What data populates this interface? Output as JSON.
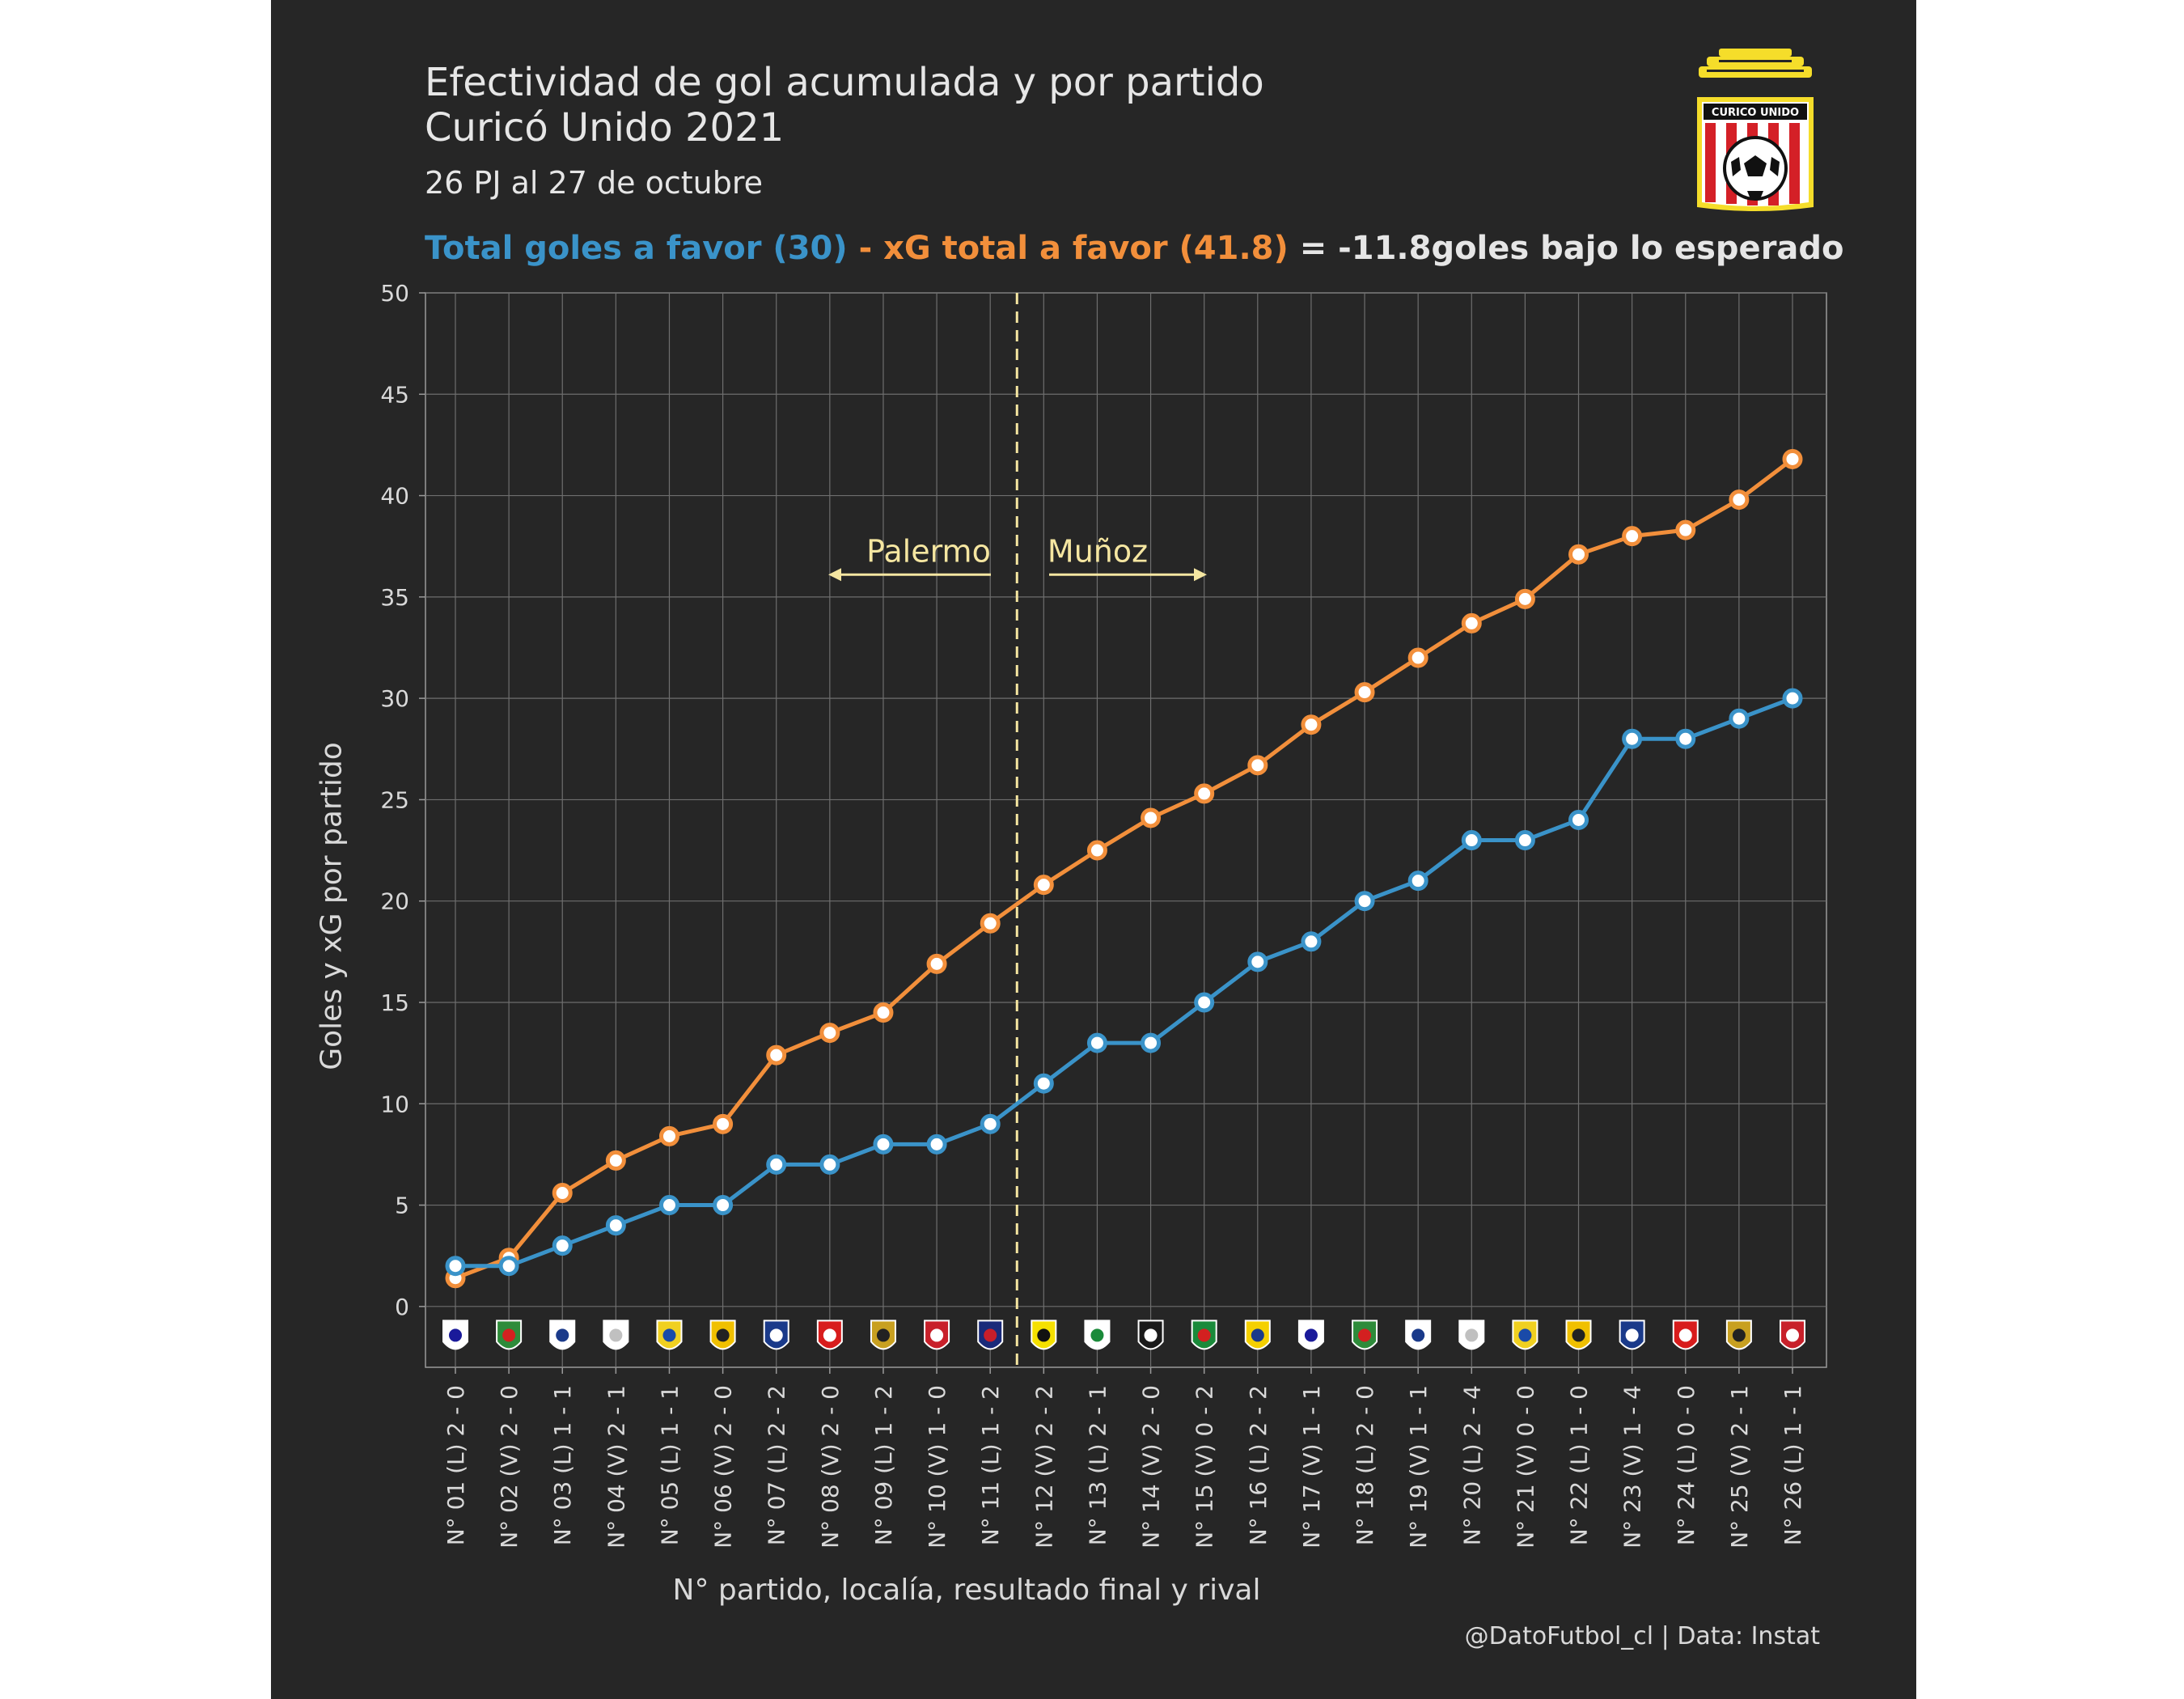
{
  "header": {
    "title_line1": "Efectividad de gol acumulada y por partido",
    "title_line2": "Curicó Unido 2021",
    "subtitle": "26 PJ al 27 de octubre",
    "summary_goals": "Total goles a favor (30)",
    "summary_xg": " - xG total a favor (41.8)",
    "summary_result": " = -11.8goles bajo lo esperado"
  },
  "logo": {
    "text": "CURICO UNIDO"
  },
  "caption": "@DatoFutbol_cl  |  Data: Instat",
  "colors": {
    "goals": "#3a93c9",
    "xg": "#f28f3b",
    "annotation": "#f5e6a1",
    "background": "#262626",
    "grid": "#6e6e6e"
  },
  "chart_data": {
    "type": "line",
    "xlabel": "N° partido, localía, resultado final y rival",
    "ylabel": "Goles y xG por partido",
    "ylim": [
      -3,
      50
    ],
    "yticks": [
      0,
      5,
      10,
      15,
      20,
      25,
      30,
      35,
      40,
      45,
      50
    ],
    "grid": true,
    "categories": [
      "N° 01 (L) 2 - 0",
      "N° 02 (V) 2 - 0",
      "N° 03 (L) 1 - 1",
      "N° 04 (V) 2 - 1",
      "N° 05 (L) 1 - 1",
      "N° 06 (V) 2 - 0",
      "N° 07 (L) 2 - 2",
      "N° 08 (V) 2 - 0",
      "N° 09 (L) 1 - 2",
      "N° 10 (V) 1 - 0",
      "N° 11 (L) 1 - 2",
      "N° 12 (V) 2 - 2",
      "N° 13 (L) 2 - 1",
      "N° 14 (V) 2 - 0",
      "N° 15 (V) 0 - 2",
      "N° 16 (L) 2 - 2",
      "N° 17 (V) 1 - 1",
      "N° 18 (L) 2 - 0",
      "N° 19 (V) 1 - 1",
      "N° 20 (L) 2 - 4",
      "N° 21 (V) 0 - 0",
      "N° 22 (L) 1 - 0",
      "N° 23 (V) 1 - 4",
      "N° 24 (L) 0 - 0",
      "N° 25 (V) 2 - 1",
      "N° 26 (L) 1 - 1"
    ],
    "series": [
      {
        "key": "xg",
        "values": [
          1.4,
          2.4,
          5.6,
          7.2,
          8.4,
          9.0,
          12.4,
          13.5,
          14.5,
          16.9,
          18.9,
          20.8,
          22.5,
          24.1,
          25.3,
          26.7,
          28.7,
          30.3,
          32.0,
          33.7,
          34.9,
          37.1,
          38.0,
          38.3,
          39.8,
          41.8
        ]
      },
      {
        "key": "goals",
        "values": [
          2,
          2,
          3,
          4,
          5,
          5,
          7,
          7,
          8,
          8,
          9,
          11,
          13,
          13,
          15,
          17,
          18,
          20,
          21,
          23,
          23,
          24,
          28,
          28,
          29,
          30
        ]
      }
    ],
    "rival_badge_colors": [
      [
        "#ffffff",
        "#1a1a9a"
      ],
      [
        "#2e8b3a",
        "#d32020"
      ],
      [
        "#ffffff",
        "#1a3a8a"
      ],
      [
        "#ffffff",
        "#c0c0c0"
      ],
      [
        "#f0d020",
        "#1a4aa8"
      ],
      [
        "#f0c000",
        "#222222"
      ],
      [
        "#1a3a8a",
        "#ffffff"
      ],
      [
        "#d81c1c",
        "#ffffff"
      ],
      [
        "#c8a020",
        "#222222"
      ],
      [
        "#c8202a",
        "#ffffff"
      ],
      [
        "#1a2a7a",
        "#c81e2a"
      ],
      [
        "#f5e000",
        "#111111"
      ],
      [
        "#ffffff",
        "#1a8a3a"
      ],
      [
        "#1a1a1a",
        "#ffffff"
      ],
      [
        "#1a8a3a",
        "#d32020"
      ],
      [
        "#f5d000",
        "#1a3a8a"
      ],
      [
        "#ffffff",
        "#1a1a9a"
      ],
      [
        "#2e8b3a",
        "#d32020"
      ],
      [
        "#ffffff",
        "#1a3a8a"
      ],
      [
        "#ffffff",
        "#c0c0c0"
      ],
      [
        "#f0d020",
        "#1a4aa8"
      ],
      [
        "#f0c000",
        "#222222"
      ],
      [
        "#1a3a8a",
        "#ffffff"
      ],
      [
        "#d81c1c",
        "#ffffff"
      ],
      [
        "#c8a020",
        "#222222"
      ],
      [
        "#c8202a",
        "#ffffff"
      ]
    ],
    "coach_change_after_match": 11.5,
    "annotations": {
      "before": "Palermo",
      "after": "Muñoz"
    }
  }
}
